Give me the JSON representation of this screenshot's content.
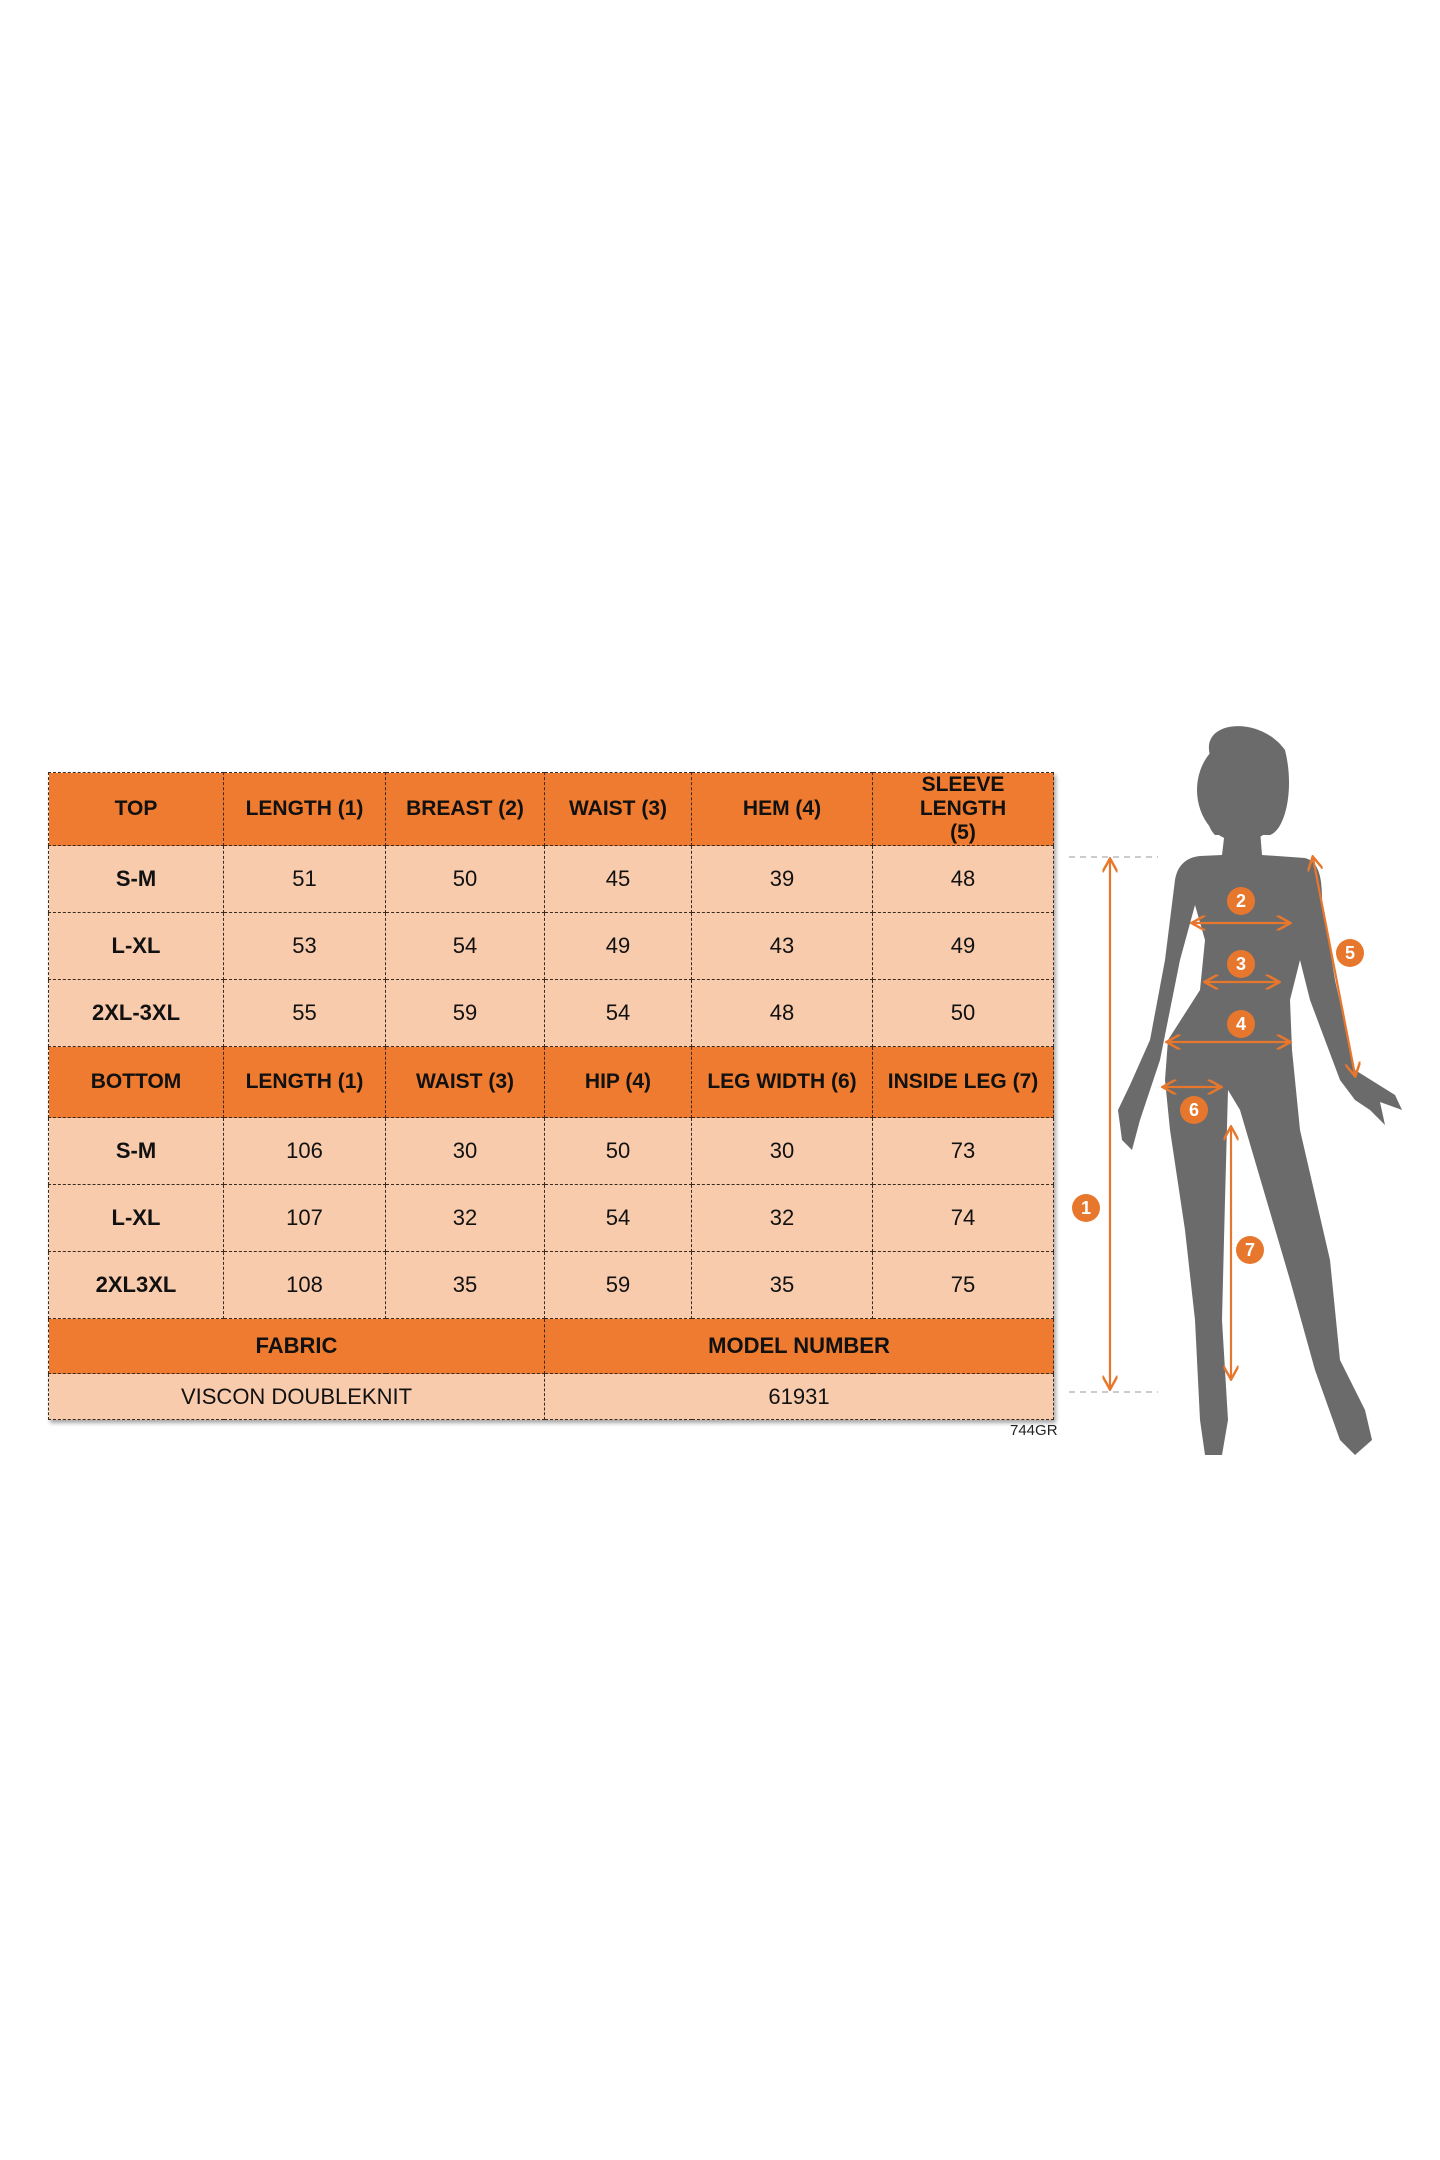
{
  "top_table": {
    "headers": [
      "TOP",
      "LENGTH (1)",
      "BREAST (2)",
      "WAIST (3)",
      "HEM (4)",
      "SLEEVE LENGTH (5)"
    ],
    "rows": [
      [
        "S-M",
        "51",
        "50",
        "45",
        "39",
        "48"
      ],
      [
        "L-XL",
        "53",
        "54",
        "49",
        "43",
        "49"
      ],
      [
        "2XL-3XL",
        "55",
        "59",
        "54",
        "48",
        "50"
      ]
    ]
  },
  "bottom_table": {
    "headers": [
      "BOTTOM",
      "LENGTH (1)",
      "WAIST (3)",
      "HIP (4)",
      "LEG WIDTH (6)",
      "INSIDE LEG (7)"
    ],
    "rows": [
      [
        "S-M",
        "106",
        "30",
        "50",
        "30",
        "73"
      ],
      [
        "L-XL",
        "107",
        "32",
        "54",
        "32",
        "74"
      ],
      [
        "2XL3XL",
        "108",
        "35",
        "59",
        "35",
        "75"
      ]
    ]
  },
  "footer": {
    "fabric_label": "FABRIC",
    "fabric_value": "VISCON DOUBLEKNIT",
    "model_label": "MODEL NUMBER",
    "model_value": "61931"
  },
  "reference_code": "744GR",
  "figure": {
    "markers": [
      "1",
      "2",
      "3",
      "4",
      "5",
      "6",
      "7"
    ]
  },
  "colors": {
    "header_orange": "#EE7B30",
    "cell_peach": "#F8CBAD",
    "silhouette_gray": "#6B6B6B",
    "marker_orange": "#E8772E"
  }
}
